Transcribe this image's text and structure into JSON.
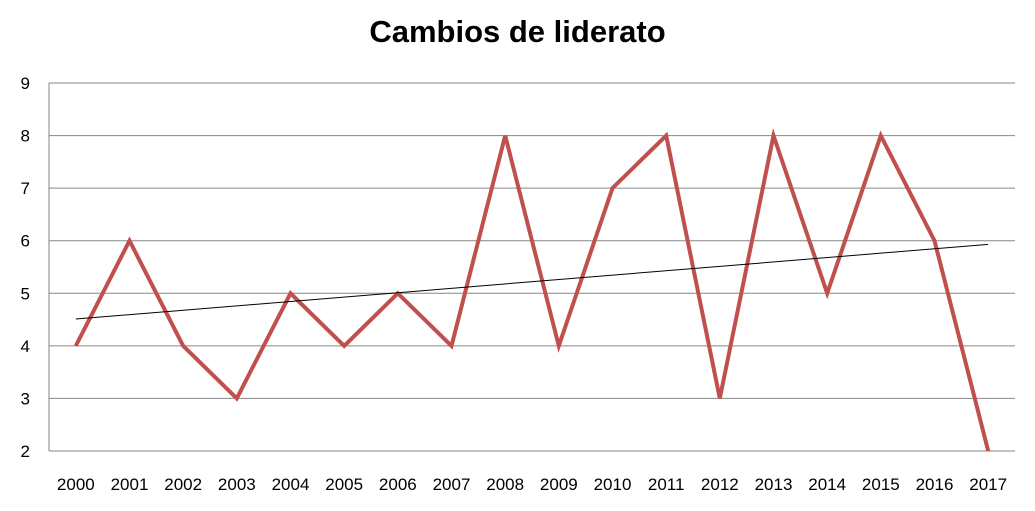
{
  "chart_data": {
    "type": "line",
    "title": "Cambios de liderato",
    "xlabel": "",
    "ylabel": "",
    "categories": [
      "2000",
      "2001",
      "2002",
      "2003",
      "2004",
      "2005",
      "2006",
      "2007",
      "2008",
      "2009",
      "2010",
      "2011",
      "2012",
      "2013",
      "2014",
      "2015",
      "2016",
      "2017"
    ],
    "series": [
      {
        "values": [
          4,
          6,
          4,
          3,
          5,
          4,
          5,
          4,
          8,
          4,
          7,
          8,
          3,
          8,
          5,
          8,
          6,
          2
        ],
        "color": "#c0504d"
      }
    ],
    "trendline": {
      "type": "linear",
      "start": 4.51,
      "end": 5.93,
      "color": "#000000"
    },
    "ylim": [
      2,
      9
    ],
    "yticks": [
      2,
      3,
      4,
      5,
      6,
      7,
      8,
      9
    ],
    "grid": true,
    "legend": "none"
  }
}
